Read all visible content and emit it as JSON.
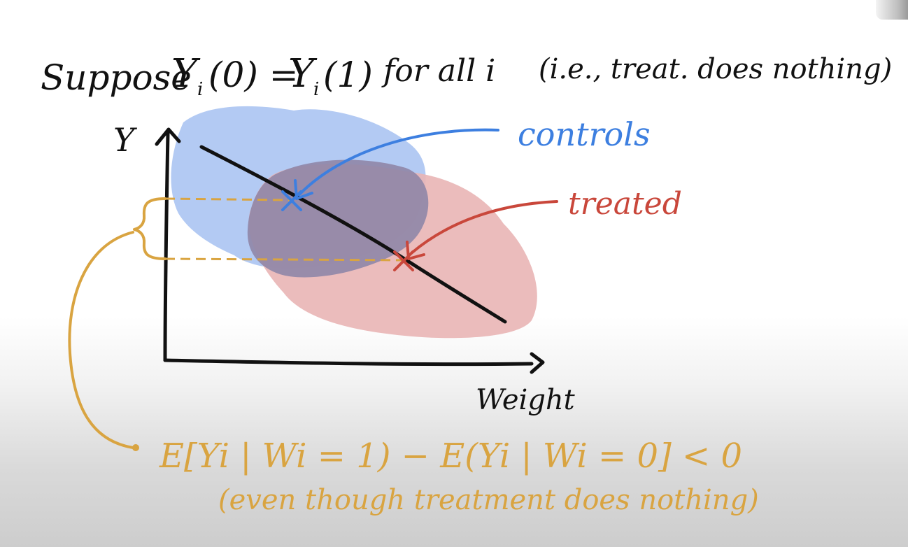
{
  "heading": {
    "word_suppose": "Suppose",
    "y": "Y",
    "i": "i",
    "expr_left": "(0) =",
    "expr_right": "(1)",
    "for_all": "for all i",
    "note": "(i.e., treat. does nothing)"
  },
  "axes": {
    "y_label": "Y",
    "x_label": "Weight"
  },
  "labels": {
    "controls": "controls",
    "treated": "treated"
  },
  "equation": {
    "main": "E[Yi | Wi = 1) − E(Yi | Wi = 0] < 0",
    "caption": "(even though treatment does nothing)"
  },
  "colors": {
    "ink": "#111111",
    "controls": "#3d7fe0",
    "treated": "#c9473b",
    "controls_fill": "#a9c3f1",
    "treated_fill": "#e9b5b5",
    "overlap_fill": "#8f86a7",
    "highlight": "#d9a441"
  }
}
